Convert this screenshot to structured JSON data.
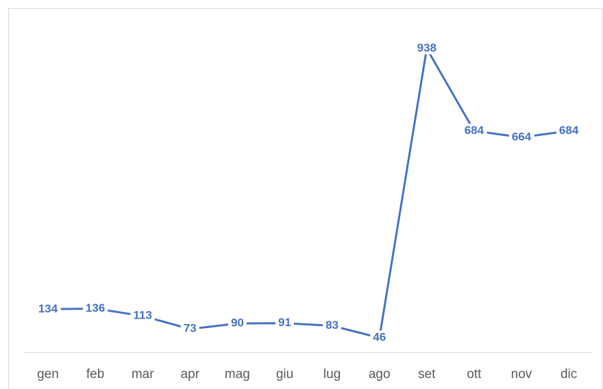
{
  "chart_data": {
    "type": "line",
    "categories": [
      "gen",
      "feb",
      "mar",
      "apr",
      "mag",
      "giu",
      "lug",
      "ago",
      "set",
      "ott",
      "nov",
      "dic"
    ],
    "values": [
      134,
      136,
      113,
      73,
      90,
      91,
      83,
      46,
      938,
      684,
      664,
      684
    ],
    "color": "#4472c4",
    "data_labels": true
  }
}
